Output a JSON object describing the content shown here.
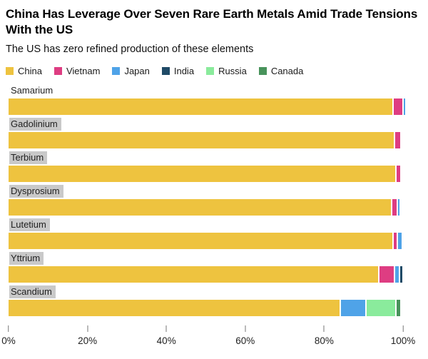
{
  "header": {
    "title": "China Has Leverage Over Seven Rare Earth Metals Amid Trade Tensions With the US",
    "subtitle": "The US has zero refined production of these elements"
  },
  "colors": {
    "china": "#EEC33F",
    "vietnam": "#DE3D82",
    "japan": "#4FA3E8",
    "india": "#1F4A66",
    "russia": "#8AEB9C",
    "canada": "#48935B",
    "label_highlight": "#C9C9C9"
  },
  "chart_data": {
    "type": "bar",
    "orientation": "horizontal",
    "stacked": true,
    "unit": "% of refined production",
    "xlim": [
      0,
      100
    ],
    "x_ticks": [
      "0%",
      "20%",
      "40%",
      "60%",
      "80%",
      "100%"
    ],
    "grid": false,
    "legend_position": "top",
    "categories": [
      "Samarium",
      "Gadolinium",
      "Terbium",
      "Dysprosium",
      "Lutetium",
      "Yttrium",
      "Scandium"
    ],
    "category_label_highlighted": [
      false,
      true,
      true,
      true,
      true,
      true,
      true
    ],
    "series": [
      {
        "name": "China",
        "color": "#EEC33F",
        "values": [
          97.3,
          97.6,
          98.0,
          96.9,
          97.3,
          93.7,
          83.9
        ]
      },
      {
        "name": "Vietnam",
        "color": "#DE3D82",
        "values": [
          2.2,
          1.3,
          0.9,
          1.1,
          0.7,
          3.6,
          0
        ]
      },
      {
        "name": "Japan",
        "color": "#4FA3E8",
        "values": [
          0.4,
          0,
          0,
          0.4,
          0.9,
          0.9,
          6.2
        ]
      },
      {
        "name": "India",
        "color": "#1F4A66",
        "values": [
          0,
          0,
          0,
          0,
          0,
          0.5,
          0
        ]
      },
      {
        "name": "Russia",
        "color": "#8AEB9C",
        "values": [
          0,
          0,
          0,
          0,
          0,
          0,
          7.2
        ]
      },
      {
        "name": "Canada",
        "color": "#48935B",
        "values": [
          0,
          0,
          0,
          0,
          0,
          0,
          0.9
        ]
      }
    ]
  }
}
